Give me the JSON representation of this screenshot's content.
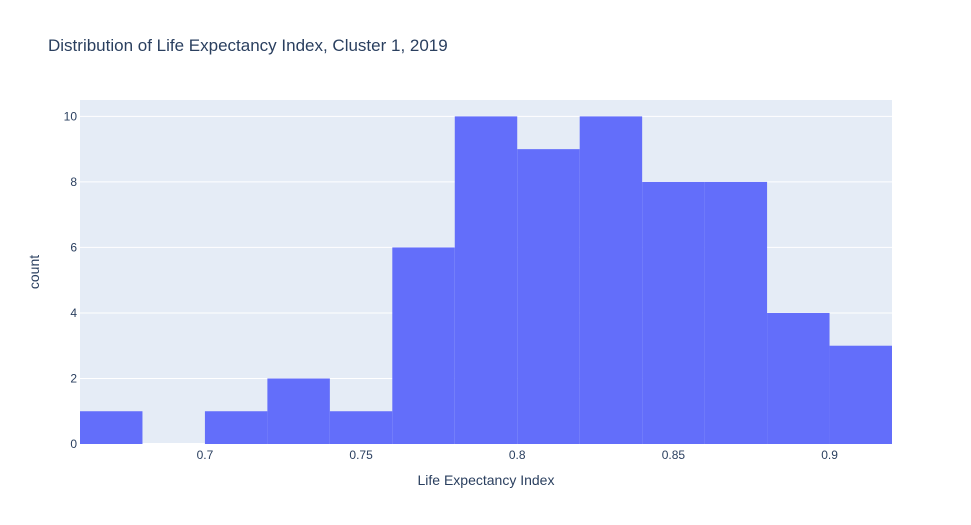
{
  "chart_data": {
    "type": "bar",
    "title": "Distribution of Life Expectancy Index, Cluster 1, 2019",
    "xlabel": "Life Expectancy Index",
    "ylabel": "count",
    "bin_edges": [
      0.66,
      0.68,
      0.7,
      0.72,
      0.74,
      0.76,
      0.78,
      0.8,
      0.82,
      0.84,
      0.86,
      0.88,
      0.9,
      0.92
    ],
    "values": [
      1,
      0,
      1,
      2,
      1,
      6,
      10,
      9,
      10,
      8,
      8,
      4,
      3
    ],
    "xlim": [
      0.66,
      0.92
    ],
    "ylim": [
      0,
      10.5
    ],
    "x_ticks": [
      0.7,
      0.75,
      0.8,
      0.85,
      0.9
    ],
    "x_tick_labels": [
      "0.7",
      "0.75",
      "0.8",
      "0.85",
      "0.9"
    ],
    "y_ticks": [
      0,
      2,
      4,
      6,
      8,
      10
    ],
    "y_tick_labels": [
      "0",
      "2",
      "4",
      "6",
      "8",
      "10"
    ],
    "grid": true,
    "colors": {
      "bar": "#636efa",
      "plot_bg": "#e5ecf6",
      "grid": "#ffffff",
      "text": "#2a3f5f"
    }
  }
}
